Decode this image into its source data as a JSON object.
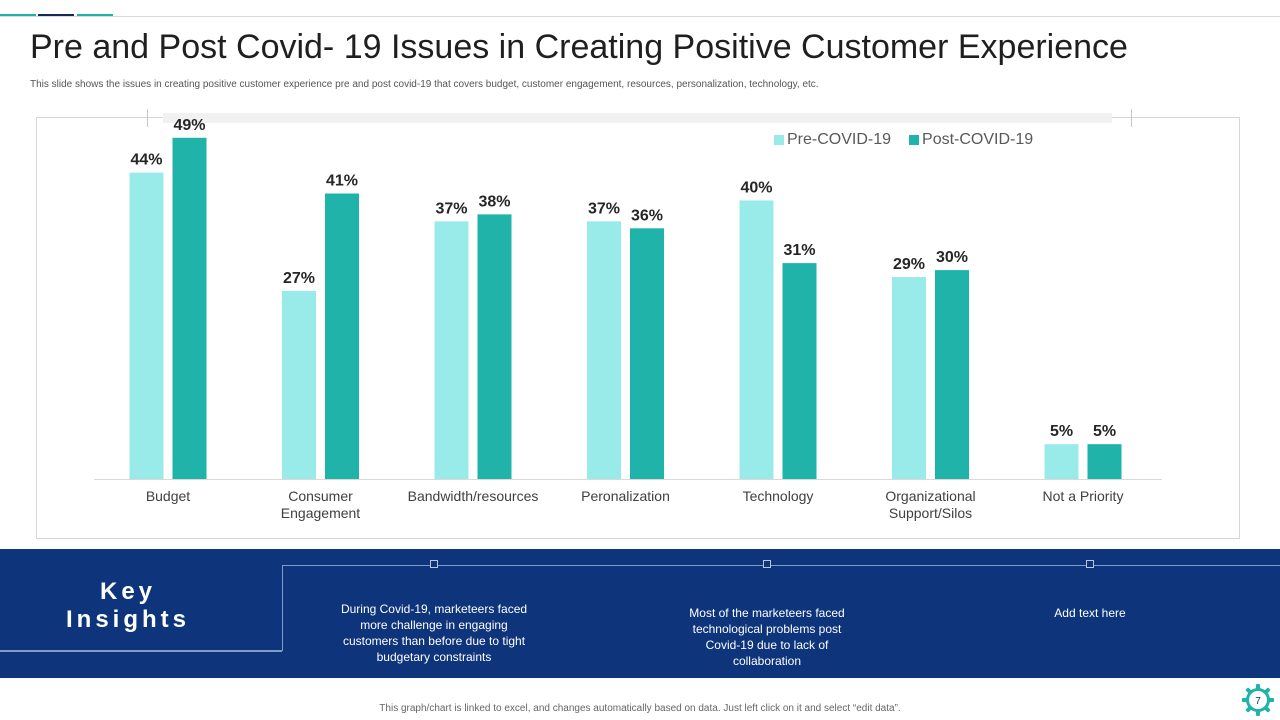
{
  "header": {
    "title": "Pre and Post Covid- 19 Issues in Creating Positive Customer Experience",
    "subtitle": "This slide shows the issues in creating positive customer experience pre and post covid-19 that covers budget, customer engagement,  resources, personalization, technology, etc."
  },
  "colors": {
    "pre": "#99ebea",
    "post": "#1fb3aa",
    "band": "#0e347b",
    "accent_dark": "#14285a"
  },
  "chart_data": {
    "type": "bar",
    "categories": [
      "Budget",
      "Consumer Engagement",
      "Bandwidth/resources",
      "Peronalization",
      "Technology",
      "Organizational Support/Silos",
      "Not a Priority"
    ],
    "category_lines": [
      [
        "Budget"
      ],
      [
        "Consumer",
        "Engagement"
      ],
      [
        "Bandwidth/resources"
      ],
      [
        "Peronalization"
      ],
      [
        "Technology"
      ],
      [
        "Organizational",
        "Support/Silos"
      ],
      [
        "Not a Priority"
      ]
    ],
    "series": [
      {
        "name": "Pre-COVID-19",
        "values": [
          44,
          27,
          37,
          37,
          40,
          29,
          5
        ]
      },
      {
        "name": "Post-COVID-19",
        "values": [
          49,
          41,
          38,
          36,
          31,
          30,
          5
        ]
      }
    ],
    "value_suffix": "%",
    "ylim": [
      0,
      55
    ],
    "title": "",
    "xlabel": "",
    "ylabel": "",
    "grid": false,
    "legend_position": "top-right"
  },
  "insights": {
    "heading_line1": "Key",
    "heading_line2": "Insights",
    "items": [
      "During Covid-19,  marketeers faced more challenge in engaging customers than before due to tight budgetary constraints",
      "Most of the marketeers faced technological problems post Covid-19  due to lack of collaboration",
      "Add text here"
    ]
  },
  "footer": {
    "note": "This graph/chart is linked to excel, and changes automatically based on data. Just left click on it and select “edit data”.",
    "page_number": "7"
  }
}
